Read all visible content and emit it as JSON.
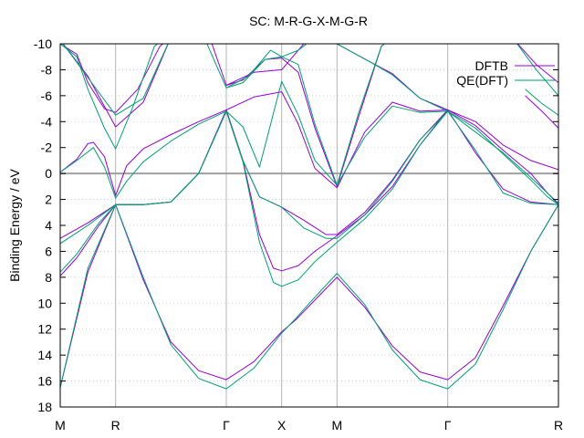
{
  "chart_data": {
    "type": "line",
    "title": "SC: M-R-G-X-M-G-R",
    "xlabel": "",
    "ylabel": "Binding Energy / eV",
    "y_inverted": true,
    "xlim": [
      0,
      9
    ],
    "ylim": [
      -10,
      18
    ],
    "yticks": [
      -10,
      -8,
      -6,
      -4,
      -2,
      0,
      2,
      4,
      6,
      8,
      10,
      12,
      14,
      16,
      18
    ],
    "xticks": [
      {
        "label": "M",
        "x": 0
      },
      {
        "label": "R",
        "x": 1
      },
      {
        "label": "Γ",
        "x": 3
      },
      {
        "label": "X",
        "x": 4
      },
      {
        "label": "M",
        "x": 5
      },
      {
        "label": "Γ",
        "x": 7
      },
      {
        "label": "R",
        "x": 9
      }
    ],
    "grid": true,
    "zero_line": 0,
    "legend_position": "top-right",
    "colors": {
      "DFTB": "#9400d3",
      "QE(DFT)": "#009e73",
      "zero": "#a0a0a0",
      "grid": "#c8c8c8"
    },
    "series": [
      {
        "name": "DFTB",
        "bands": [
          [
            [
              0,
              16.5
            ],
            [
              0.5,
              7.6
            ],
            [
              1,
              2.4
            ],
            [
              1.5,
              8.2
            ],
            [
              2,
              13.0
            ],
            [
              2.5,
              15.2
            ],
            [
              3,
              15.9
            ],
            [
              3.5,
              14.5
            ],
            [
              4,
              12.2
            ],
            [
              4.25,
              11.3
            ],
            [
              4.5,
              10.2
            ],
            [
              5,
              8.0
            ],
            [
              5.5,
              10.3
            ],
            [
              6,
              13.3
            ],
            [
              6.5,
              15.3
            ],
            [
              7,
              15.9
            ],
            [
              7.5,
              14.2
            ],
            [
              8,
              10.2
            ],
            [
              8.5,
              6.0
            ],
            [
              9,
              2.4
            ]
          ],
          [
            [
              0,
              7.9
            ],
            [
              0.3,
              6.5
            ],
            [
              0.7,
              4.0
            ],
            [
              1,
              2.4
            ],
            [
              1.5,
              2.4
            ],
            [
              2,
              2.2
            ],
            [
              2.5,
              0.0
            ],
            [
              3,
              -4.9
            ],
            [
              3.3,
              -1.0
            ],
            [
              3.6,
              4.7
            ],
            [
              3.85,
              7.3
            ],
            [
              4,
              7.5
            ],
            [
              4.3,
              7.1
            ],
            [
              4.6,
              6.0
            ],
            [
              5,
              4.8
            ],
            [
              5.5,
              3.2
            ],
            [
              6,
              1.0
            ],
            [
              6.5,
              -2.2
            ],
            [
              7,
              -4.9
            ],
            [
              7.5,
              -1.6
            ],
            [
              8,
              1.2
            ],
            [
              8.5,
              2.2
            ],
            [
              9,
              2.4
            ]
          ],
          [
            [
              0,
              5.0
            ],
            [
              0.5,
              3.8
            ],
            [
              1,
              2.4
            ],
            [
              1.5,
              2.4
            ],
            [
              2,
              2.2
            ],
            [
              2.5,
              0.0
            ],
            [
              3,
              -4.9
            ],
            [
              3.3,
              -1.0
            ],
            [
              3.6,
              1.8
            ],
            [
              4,
              2.6
            ],
            [
              4.4,
              3.6
            ],
            [
              4.8,
              4.7
            ],
            [
              5,
              4.7
            ],
            [
              5.5,
              3.0
            ],
            [
              6,
              0.5
            ],
            [
              6.5,
              -2.6
            ],
            [
              7,
              -4.9
            ],
            [
              7.5,
              -3.7
            ],
            [
              8,
              -1.8
            ],
            [
              8.5,
              0.0
            ],
            [
              8.8,
              1.5
            ],
            [
              9,
              2.3
            ]
          ],
          [
            [
              0,
              -0.1
            ],
            [
              0.3,
              -1.1
            ],
            [
              0.5,
              -2.3
            ],
            [
              0.6,
              -2.4
            ],
            [
              0.8,
              -1.3
            ],
            [
              1,
              1.7
            ],
            [
              1.2,
              -0.6
            ],
            [
              1.5,
              -1.9
            ],
            [
              2,
              -3.0
            ],
            [
              2.5,
              -4.0
            ],
            [
              3,
              -4.9
            ],
            [
              3.5,
              -5.9
            ],
            [
              4,
              -6.3
            ],
            [
              4.3,
              -3.8
            ],
            [
              4.6,
              -0.4
            ],
            [
              5,
              1.1
            ],
            [
              5.5,
              -3.2
            ],
            [
              6,
              -5.5
            ],
            [
              6.5,
              -4.8
            ],
            [
              7,
              -4.9
            ],
            [
              7.5,
              -4.0
            ],
            [
              8,
              -2.2
            ],
            [
              8.5,
              -1.0
            ],
            [
              9,
              -0.3
            ]
          ],
          [
            [
              0,
              -10.3
            ],
            [
              0.5,
              -7.5
            ],
            [
              1,
              -3.6
            ],
            [
              1.5,
              -5.5
            ],
            [
              2,
              -10.5
            ]
          ],
          [
            [
              0,
              -10.0
            ],
            [
              0.3,
              -9.2
            ],
            [
              0.5,
              -7.0
            ],
            [
              0.8,
              -5.0
            ],
            [
              1,
              -4.7
            ],
            [
              1.4,
              -6.5
            ],
            [
              1.8,
              -9.8
            ],
            [
              2.0,
              -10.5
            ]
          ],
          [
            [
              2.7,
              -10.5
            ],
            [
              3,
              -6.8
            ],
            [
              3.3,
              -7.2
            ],
            [
              3.7,
              -8.8
            ],
            [
              4,
              -8.9
            ],
            [
              4.3,
              -7.8
            ],
            [
              4.6,
              -3.5
            ],
            [
              5,
              1.0
            ],
            [
              5.4,
              -4.5
            ],
            [
              5.8,
              -9.8
            ],
            [
              6,
              -10.5
            ]
          ],
          [
            [
              3,
              -6.8
            ],
            [
              3.5,
              -7.8
            ],
            [
              4,
              -8.0
            ],
            [
              4.2,
              -9.0
            ],
            [
              4.4,
              -10.0
            ],
            [
              4.6,
              -10.5
            ]
          ],
          [
            [
              5,
              -10.0
            ],
            [
              5.6,
              -8.6
            ],
            [
              6,
              -7.7
            ],
            [
              6.5,
              -5.8
            ],
            [
              7,
              -4.9
            ]
          ],
          [
            [
              8.4,
              -6.0
            ],
            [
              8.7,
              -4.8
            ],
            [
              9,
              -3.5
            ]
          ],
          [
            [
              8.2,
              -10.3
            ],
            [
              8.6,
              -8.4
            ],
            [
              9,
              -7.0
            ]
          ]
        ]
      },
      {
        "name": "QE(DFT)",
        "bands": [
          [
            [
              0,
              16.5
            ],
            [
              0.5,
              7.3
            ],
            [
              1,
              2.4
            ],
            [
              1.5,
              8.0
            ],
            [
              2,
              13.2
            ],
            [
              2.5,
              15.8
            ],
            [
              3,
              16.6
            ],
            [
              3.5,
              15.0
            ],
            [
              4,
              12.3
            ],
            [
              4.25,
              11.2
            ],
            [
              4.5,
              10.0
            ],
            [
              5,
              7.7
            ],
            [
              5.5,
              10.1
            ],
            [
              6,
              13.6
            ],
            [
              6.5,
              15.9
            ],
            [
              7,
              16.6
            ],
            [
              7.5,
              14.7
            ],
            [
              8,
              10.5
            ],
            [
              8.5,
              6.0
            ],
            [
              9,
              2.4
            ]
          ],
          [
            [
              0,
              7.6
            ],
            [
              0.3,
              6.2
            ],
            [
              0.7,
              3.8
            ],
            [
              1,
              2.4
            ],
            [
              1.5,
              2.4
            ],
            [
              2,
              2.2
            ],
            [
              2.5,
              0.0
            ],
            [
              3,
              -4.8
            ],
            [
              3.3,
              -0.9
            ],
            [
              3.6,
              5.3
            ],
            [
              3.85,
              8.4
            ],
            [
              4,
              8.7
            ],
            [
              4.3,
              8.2
            ],
            [
              4.6,
              6.8
            ],
            [
              5,
              5.3
            ],
            [
              5.5,
              3.5
            ],
            [
              6,
              1.2
            ],
            [
              6.5,
              -2.2
            ],
            [
              7,
              -4.8
            ],
            [
              7.5,
              -1.8
            ],
            [
              8,
              1.5
            ],
            [
              8.5,
              2.3
            ],
            [
              9,
              2.4
            ]
          ],
          [
            [
              0,
              5.4
            ],
            [
              0.5,
              4.0
            ],
            [
              1,
              2.4
            ],
            [
              1.5,
              2.4
            ],
            [
              2,
              2.2
            ],
            [
              2.5,
              0.0
            ],
            [
              3,
              -4.8
            ],
            [
              3.3,
              -1.0
            ],
            [
              3.6,
              1.8
            ],
            [
              4,
              2.6
            ],
            [
              4.4,
              4.2
            ],
            [
              4.8,
              5.0
            ],
            [
              5,
              5.0
            ],
            [
              5.5,
              3.2
            ],
            [
              6,
              0.6
            ],
            [
              6.5,
              -2.6
            ],
            [
              7,
              -4.8
            ],
            [
              7.5,
              -3.5
            ],
            [
              8,
              -1.5
            ],
            [
              8.5,
              0.5
            ],
            [
              8.8,
              1.8
            ],
            [
              9,
              2.4
            ]
          ],
          [
            [
              0,
              -0.1
            ],
            [
              0.3,
              -1.0
            ],
            [
              0.6,
              -2.0
            ],
            [
              0.8,
              -0.5
            ],
            [
              1,
              1.9
            ],
            [
              1.2,
              0.6
            ],
            [
              1.5,
              -0.9
            ],
            [
              2,
              -2.5
            ],
            [
              2.5,
              -3.8
            ],
            [
              3,
              -4.8
            ],
            [
              3.3,
              -3.6
            ],
            [
              3.6,
              -0.5
            ],
            [
              4,
              -7.1
            ],
            [
              4.3,
              -4.5
            ],
            [
              4.6,
              -1.0
            ],
            [
              5,
              0.9
            ],
            [
              5.5,
              -2.8
            ],
            [
              6,
              -5.2
            ],
            [
              6.5,
              -4.7
            ],
            [
              7,
              -4.8
            ],
            [
              7.5,
              -3.2
            ],
            [
              8,
              -1.6
            ],
            [
              8.5,
              0.3
            ],
            [
              8.8,
              1.5
            ],
            [
              9,
              2.4
            ]
          ],
          [
            [
              0,
              -10.3
            ],
            [
              0.5,
              -7.4
            ],
            [
              1,
              -4.5
            ],
            [
              1.5,
              -5.8
            ],
            [
              2,
              -10.5
            ]
          ],
          [
            [
              0,
              -10.0
            ],
            [
              0.3,
              -9.0
            ],
            [
              0.5,
              -6.5
            ],
            [
              0.8,
              -3.5
            ],
            [
              1,
              -1.9
            ],
            [
              1.3,
              -5.0
            ],
            [
              1.7,
              -9.8
            ],
            [
              1.9,
              -10.5
            ]
          ],
          [
            [
              2.6,
              -10.5
            ],
            [
              3,
              -6.6
            ],
            [
              3.3,
              -7.0
            ],
            [
              3.7,
              -8.8
            ],
            [
              4,
              -9.0
            ],
            [
              4.3,
              -8.4
            ],
            [
              4.6,
              -3.8
            ],
            [
              5,
              0.9
            ],
            [
              5.4,
              -4.8
            ],
            [
              5.8,
              -9.8
            ],
            [
              6,
              -10.5
            ]
          ],
          [
            [
              3,
              -6.6
            ],
            [
              3.4,
              -7.5
            ],
            [
              3.8,
              -9.5
            ],
            [
              4,
              -9.0
            ],
            [
              4.3,
              -9.5
            ],
            [
              4.6,
              -10.5
            ]
          ],
          [
            [
              5,
              -10.0
            ],
            [
              5.6,
              -8.6
            ],
            [
              6,
              -7.6
            ],
            [
              6.5,
              -5.8
            ],
            [
              7,
              -4.8
            ]
          ],
          [
            [
              8.4,
              -6.5
            ],
            [
              8.7,
              -5.4
            ],
            [
              9,
              -4.5
            ]
          ],
          [
            [
              8.2,
              -10.3
            ],
            [
              8.6,
              -8.0
            ],
            [
              9,
              -6.0
            ]
          ]
        ]
      }
    ]
  }
}
